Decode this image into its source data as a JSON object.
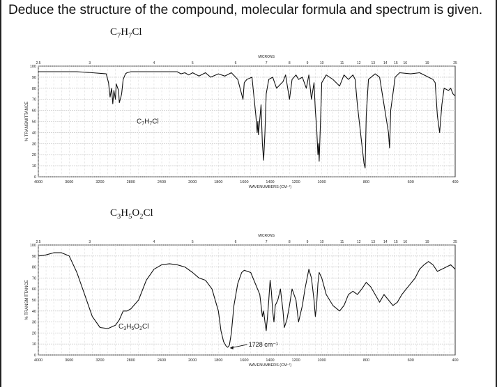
{
  "question": "Deduce the structure of the compound, molecular formula and spectrum is given.",
  "spectra": [
    {
      "formula": "C7H7Cl",
      "inset_label": "C7H7Cl"
    },
    {
      "formula": "C3H5O2Cl",
      "inset_label": "C3H5O2Cl"
    }
  ],
  "chart_data": [
    {
      "type": "line",
      "title": "C7H7Cl",
      "xlabel": "WAVENUMBERS (CM⁻¹)",
      "ylabel": "% TRANSMITTANCE",
      "top_axis_label": "MICRONS",
      "x_axis": "reversed-piecewise",
      "xlim": [
        4000,
        400
      ],
      "ylim": [
        0,
        100
      ],
      "grid": true,
      "x_ticks": [
        "4000",
        "3600",
        "3200",
        "2800",
        "2400",
        "2000",
        "1800",
        "1600",
        "1400",
        "1200",
        "1000",
        "800",
        "600",
        "400"
      ],
      "y_ticks": [
        "100",
        "90",
        "80",
        "70",
        "60",
        "50",
        "40",
        "30",
        "20",
        "10",
        "0"
      ],
      "micron_ticks": [
        "2.5",
        "3",
        "4",
        "5",
        "6",
        "7",
        "8",
        "9",
        "10",
        "11",
        "12",
        "13",
        "14",
        "15",
        "16",
        "19",
        "25"
      ],
      "annotation": "",
      "series": [
        {
          "x": [
            4000,
            3500,
            3300,
            3120,
            3090,
            3070,
            3050,
            3035,
            3020,
            3000,
            2990,
            2960,
            2950,
            2930,
            2920,
            2900,
            2870,
            2850,
            2800,
            2700,
            2400,
            2200,
            2150,
            2100,
            2050,
            2000,
            1950,
            1900,
            1860,
            1800,
            1750,
            1700,
            1650,
            1610,
            1600,
            1580,
            1540,
            1510,
            1500,
            1495,
            1490,
            1485,
            1480,
            1470,
            1460,
            1450,
            1440,
            1430,
            1410,
            1380,
            1350,
            1300,
            1280,
            1250,
            1230,
            1200,
            1180,
            1150,
            1120,
            1100,
            1080,
            1060,
            1050,
            1040,
            1030,
            1025,
            1020,
            1010,
            1000,
            980,
            950,
            920,
            900,
            880,
            860,
            850,
            840,
            810,
            805,
            800,
            790,
            760,
            740,
            700,
            695,
            690,
            670,
            650,
            600,
            560,
            520,
            500,
            490,
            480,
            470,
            460,
            450,
            430,
            420,
            410,
            400
          ],
          "y": [
            95,
            95,
            94,
            93,
            85,
            72,
            80,
            66,
            78,
            70,
            84,
            78,
            67,
            72,
            75,
            88,
            93,
            94,
            95,
            95,
            95,
            95,
            93,
            94,
            92,
            94,
            91,
            94,
            90,
            93,
            91,
            94,
            88,
            70,
            85,
            88,
            90,
            55,
            40,
            50,
            38,
            45,
            52,
            65,
            30,
            15,
            40,
            75,
            88,
            90,
            80,
            86,
            92,
            70,
            88,
            92,
            88,
            90,
            80,
            92,
            70,
            85,
            60,
            45,
            20,
            30,
            14,
            50,
            85,
            92,
            88,
            82,
            92,
            88,
            92,
            88,
            65,
            12,
            8,
            55,
            88,
            93,
            90,
            40,
            26,
            60,
            90,
            94,
            93,
            94,
            90,
            88,
            85,
            55,
            40,
            65,
            80,
            78,
            80,
            75,
            73
          ]
        }
      ]
    },
    {
      "type": "line",
      "title": "C3H5O2Cl",
      "xlabel": "WAVENUMBERS (CM⁻¹)",
      "ylabel": "% TRANSMITTANCE",
      "top_axis_label": "MICRONS",
      "x_axis": "reversed-piecewise",
      "xlim": [
        4000,
        400
      ],
      "ylim": [
        0,
        100
      ],
      "grid": true,
      "x_ticks": [
        "4000",
        "3600",
        "3200",
        "2800",
        "2400",
        "2000",
        "1800",
        "1600",
        "1400",
        "1200",
        "1000",
        "800",
        "600",
        "400"
      ],
      "y_ticks": [
        "100",
        "90",
        "80",
        "70",
        "60",
        "50",
        "40",
        "30",
        "20",
        "10",
        "0"
      ],
      "micron_ticks": [
        "2.5",
        "3",
        "4",
        "5",
        "6",
        "7",
        "8",
        "9",
        "10",
        "11",
        "12",
        "13",
        "14",
        "15",
        "16",
        "19",
        "25"
      ],
      "annotation": "1728 cm⁻¹",
      "annotation_x": 1728,
      "annotation_y": 7,
      "series": [
        {
          "x": [
            4000,
            3900,
            3800,
            3700,
            3600,
            3500,
            3400,
            3300,
            3200,
            3100,
            3000,
            2950,
            2900,
            2850,
            2800,
            2700,
            2600,
            2500,
            2400,
            2300,
            2200,
            2100,
            2000,
            1950,
            1900,
            1850,
            1800,
            1780,
            1760,
            1740,
            1728,
            1715,
            1700,
            1680,
            1650,
            1620,
            1600,
            1550,
            1480,
            1460,
            1450,
            1440,
            1430,
            1420,
            1410,
            1400,
            1390,
            1380,
            1370,
            1360,
            1340,
            1320,
            1300,
            1290,
            1270,
            1250,
            1230,
            1200,
            1180,
            1150,
            1130,
            1100,
            1080,
            1060,
            1050,
            1040,
            1030,
            1020,
            1000,
            980,
            950,
            920,
            900,
            880,
            860,
            840,
            820,
            800,
            780,
            760,
            740,
            720,
            700,
            680,
            660,
            640,
            620,
            600,
            580,
            560,
            540,
            520,
            500,
            480,
            460,
            440,
            420,
            400
          ],
          "y": [
            90,
            91,
            93,
            93,
            90,
            75,
            55,
            35,
            25,
            24,
            27,
            32,
            40,
            40,
            42,
            50,
            68,
            78,
            82,
            83,
            82,
            80,
            75,
            70,
            68,
            60,
            40,
            22,
            12,
            8,
            7,
            9,
            20,
            45,
            65,
            75,
            77,
            75,
            55,
            35,
            40,
            30,
            22,
            35,
            50,
            68,
            58,
            40,
            30,
            45,
            50,
            60,
            40,
            25,
            32,
            45,
            60,
            50,
            30,
            45,
            60,
            78,
            70,
            50,
            35,
            45,
            65,
            75,
            70,
            55,
            45,
            40,
            45,
            55,
            58,
            55,
            60,
            66,
            62,
            55,
            48,
            55,
            50,
            45,
            48,
            55,
            60,
            65,
            70,
            78,
            82,
            85,
            82,
            76,
            78,
            80,
            82,
            78
          ]
        }
      ]
    }
  ]
}
